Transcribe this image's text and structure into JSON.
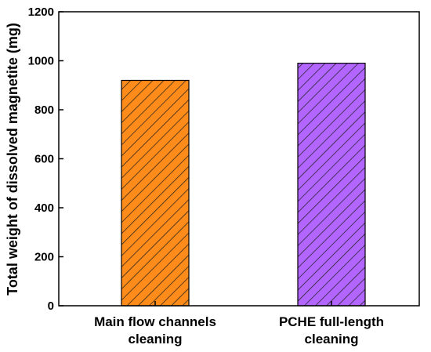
{
  "chart_data": {
    "type": "bar",
    "categories": [
      [
        "Main flow channels",
        "cleaning"
      ],
      [
        "PCHE full-length",
        "cleaning"
      ]
    ],
    "values": [
      920,
      990
    ],
    "bar_colors": [
      "#ff8c1a",
      "#b266ff"
    ],
    "hatch_color": "#1a1a1a",
    "edge_color": "#000000",
    "title": "",
    "xlabel": "",
    "ylabel": "Total weight of dissolved magnetite (mg)",
    "ylim": [
      0,
      1200
    ],
    "yticks": [
      "0",
      "200",
      "400",
      "600",
      "800",
      "1000",
      "1200"
    ],
    "grid": false,
    "legend": "none"
  }
}
